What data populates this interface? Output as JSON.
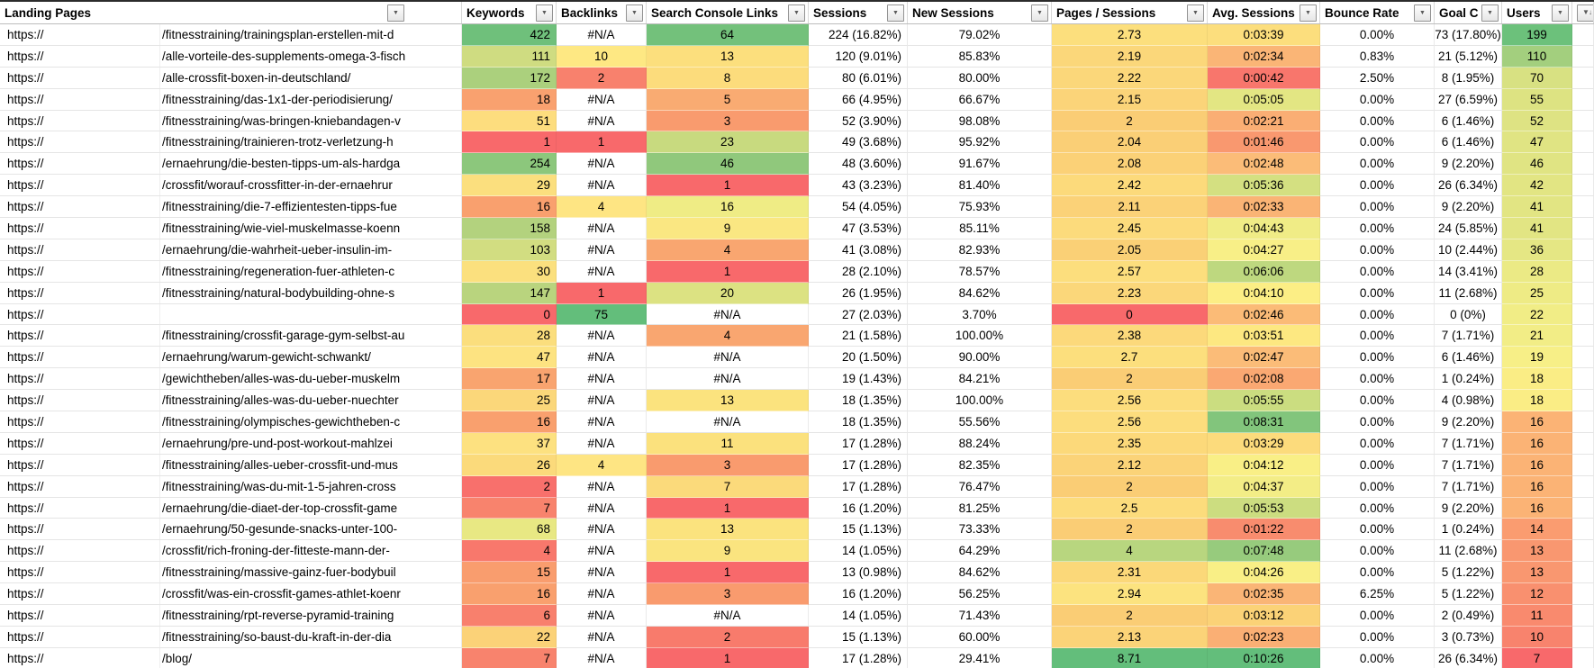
{
  "icons": {
    "filter": "▼",
    "sort_desc": "↓"
  },
  "table": {
    "protocol": "https://"
  },
  "header": {
    "columns": [
      "Landing Pages",
      "Keywords",
      "Backlinks",
      "Search Console Links",
      "Sessions",
      "New Sessions",
      "Pages / Sessions",
      "Avg. Sessions",
      "Bounce Rate",
      "Goal C",
      "Users"
    ]
  },
  "rows": [
    {
      "p": "/fitnesstraining/trainingsplan-erstellen-mit-d",
      "kw": "422",
      "kwc": "#6FC07B",
      "bl": "#N/A",
      "scl": "64",
      "sclc": "#73C17B",
      "s": "224 (16.82%)",
      "ns": "79.02%",
      "ps": "2.73",
      "psc": "#FCDF7D",
      "avg": "0:03:39",
      "avgc": "#FCDE7D",
      "br": "0.00%",
      "goal": "73 (17.80%)",
      "u": "199",
      "uc": "#6CC17B"
    },
    {
      "p": "/alle-vorteile-des-supplements-omega-3-fisch",
      "kw": "111",
      "kwc": "#CFDC81",
      "bl": "10",
      "blc": "#FEE883",
      "scl": "13",
      "sclc": "#FCDF7D",
      "s": "120 (9.01%)",
      "ns": "85.83%",
      "ps": "2.19",
      "psc": "#FBD77A",
      "avg": "0:02:34",
      "avgc": "#FAB576",
      "br": "0.83%",
      "goal": "21 (5.12%)",
      "u": "110",
      "uc": "#A3CF7E"
    },
    {
      "p": "/alle-crossfit-boxen-in-deutschland/",
      "kw": "172",
      "kwc": "#ABD07D",
      "bl": "2",
      "blc": "#F8816D",
      "scl": "8",
      "sclc": "#FCDC7C",
      "s": "80 (6.01%)",
      "ns": "80.00%",
      "ps": "2.22",
      "psc": "#FBD77A",
      "avg": "0:00:42",
      "avgc": "#F8766C",
      "br": "2.50%",
      "goal": "8 (1.95%)",
      "u": "70",
      "uc": "#D8E182"
    },
    {
      "p": "/fitnesstraining/das-1x1-der-periodisierung/",
      "kw": "18",
      "kwc": "#F9A16F",
      "bl": "#N/A",
      "scl": "5",
      "sclc": "#F9AB72",
      "s": "66 (4.95%)",
      "ns": "66.67%",
      "ps": "2.15",
      "psc": "#FBD479",
      "avg": "0:05:05",
      "avgc": "#E3E683",
      "br": "0.00%",
      "goal": "27 (6.59%)",
      "u": "55",
      "uc": "#DDE382"
    },
    {
      "p": "/fitnesstraining/was-bringen-kniebandagen-v",
      "kw": "51",
      "kwc": "#FDDD7E",
      "bl": "#N/A",
      "scl": "3",
      "sclc": "#F99B6E",
      "s": "52 (3.90%)",
      "ns": "98.08%",
      "ps": "2",
      "psc": "#FACD75",
      "avg": "0:02:21",
      "avgc": "#FAAE74",
      "br": "0.00%",
      "goal": "6 (1.46%)",
      "u": "52",
      "uc": "#DEE383"
    },
    {
      "p": "/fitnesstraining/trainieren-trotz-verletzung-h",
      "kw": "1",
      "kwc": "#F8696B",
      "bl": "1",
      "blc": "#F8696B",
      "scl": "23",
      "sclc": "#C8DA7F",
      "s": "49 (3.68%)",
      "ns": "95.92%",
      "ps": "2.04",
      "psc": "#FACF76",
      "avg": "0:01:46",
      "avgc": "#F9986F",
      "br": "0.00%",
      "goal": "6 (1.46%)",
      "u": "47",
      "uc": "#E0E483"
    },
    {
      "p": "/ernaehrung/die-besten-tipps-um-als-hardga",
      "kw": "254",
      "kwc": "#8CC77C",
      "bl": "#N/A",
      "scl": "46",
      "sclc": "#90C87C",
      "s": "48 (3.60%)",
      "ns": "91.67%",
      "ps": "2.08",
      "psc": "#FBD177",
      "avg": "0:02:48",
      "avgc": "#FBBC78",
      "br": "0.00%",
      "goal": "9 (2.20%)",
      "u": "46",
      "uc": "#E0E483"
    },
    {
      "p": "/crossfit/worauf-crossfitter-in-der-ernaehrur",
      "kw": "29",
      "kwc": "#FBDF7E",
      "bl": "#N/A",
      "scl": "1",
      "sclc": "#F8696B",
      "s": "43 (3.23%)",
      "ns": "81.40%",
      "ps": "2.42",
      "psc": "#FCDA7B",
      "avg": "0:05:36",
      "avgc": "#D4E081",
      "br": "0.00%",
      "goal": "26 (6.34%)",
      "u": "42",
      "uc": "#E2E583"
    },
    {
      "p": "/fitnesstraining/die-7-effizientesten-tipps-fue",
      "kw": "16",
      "kwc": "#F9A06E",
      "bl": "4",
      "blc": "#FEE583",
      "scl": "16",
      "sclc": "#EFEC85",
      "s": "54 (4.05%)",
      "ns": "75.93%",
      "ps": "2.11",
      "psc": "#FBD278",
      "avg": "0:02:33",
      "avgc": "#FAB475",
      "br": "0.00%",
      "goal": "9 (2.20%)",
      "u": "41",
      "uc": "#E2E583"
    },
    {
      "p": "/fitnesstraining/wie-viel-muskelmasse-koenn",
      "kw": "158",
      "kwc": "#B3D27E",
      "bl": "#N/A",
      "scl": "9",
      "sclc": "#FAE782",
      "s": "47 (3.53%)",
      "ns": "85.11%",
      "ps": "2.45",
      "psc": "#FCDB7C",
      "avg": "0:04:43",
      "avgc": "#F0EC86",
      "br": "0.00%",
      "goal": "24 (5.85%)",
      "u": "41",
      "uc": "#E2E583"
    },
    {
      "p": "/ernaehrung/die-wahrheit-ueber-insulin-im-",
      "kw": "103",
      "kwc": "#D2DD81",
      "bl": "#N/A",
      "scl": "4",
      "sclc": "#F9A670",
      "s": "41 (3.08%)",
      "ns": "82.93%",
      "ps": "2.05",
      "psc": "#FAD076",
      "avg": "0:04:27",
      "avgc": "#F8EF87",
      "br": "0.00%",
      "goal": "10 (2.44%)",
      "u": "36",
      "uc": "#E5E784"
    },
    {
      "p": "/fitnesstraining/regeneration-fuer-athleten-c",
      "kw": "30",
      "kwc": "#FBE07E",
      "bl": "#N/A",
      "scl": "1",
      "sclc": "#F8696B",
      "s": "28 (2.10%)",
      "ns": "78.57%",
      "ps": "2.57",
      "psc": "#FCDE7D",
      "avg": "0:06:06",
      "avgc": "#BED87F",
      "br": "0.00%",
      "goal": "14 (3.41%)",
      "u": "28",
      "uc": "#EBEA85"
    },
    {
      "p": "/fitnesstraining/natural-bodybuilding-ohne-s",
      "kw": "147",
      "kwc": "#B9D47E",
      "bl": "1",
      "blc": "#F8696B",
      "scl": "20",
      "sclc": "#DCE282",
      "s": "26 (1.95%)",
      "ns": "84.62%",
      "ps": "2.23",
      "psc": "#FBD77A",
      "avg": "0:04:10",
      "avgc": "#FCEE85",
      "br": "0.00%",
      "goal": "11 (2.68%)",
      "u": "25",
      "uc": "#EEEB85"
    },
    {
      "p": "",
      "kw": "0",
      "kwc": "#F8696B",
      "bl": "75",
      "blc": "#63BE7B",
      "scl": "#N/A",
      "s": "27 (2.03%)",
      "ns": "3.70%",
      "ps": "0",
      "psc": "#F8696B",
      "avg": "0:02:46",
      "avgc": "#FBBB77",
      "br": "0.00%",
      "goal": "0 (0%)",
      "u": "22",
      "uc": "#F1ED86"
    },
    {
      "p": "/fitnesstraining/crossfit-garage-gym-selbst-au",
      "kw": "28",
      "kwc": "#FBDE7D",
      "bl": "#N/A",
      "scl": "4",
      "sclc": "#F9A670",
      "s": "21 (1.58%)",
      "ns": "100.00%",
      "ps": "2.38",
      "psc": "#FCD97B",
      "avg": "0:03:51",
      "avgc": "#FDE881",
      "br": "0.00%",
      "goal": "7 (1.71%)",
      "u": "21",
      "uc": "#F2ED86"
    },
    {
      "p": "/ernaehrung/warum-gewicht-schwankt/",
      "kw": "47",
      "kwc": "#FDE381",
      "bl": "#N/A",
      "scl": "#N/A",
      "s": "20 (1.50%)",
      "ns": "90.00%",
      "ps": "2.7",
      "psc": "#FCDF7D",
      "avg": "0:02:47",
      "avgc": "#FBBC78",
      "br": "0.00%",
      "goal": "6 (1.46%)",
      "u": "19",
      "uc": "#F7EF87"
    },
    {
      "p": "/gewichtheben/alles-was-du-ueber-muskelm",
      "kw": "17",
      "kwc": "#F9A46F",
      "bl": "#N/A",
      "scl": "#N/A",
      "s": "19 (1.43%)",
      "ns": "84.21%",
      "ps": "2",
      "psc": "#FACD75",
      "avg": "0:02:08",
      "avgc": "#FAA872",
      "br": "0.00%",
      "goal": "1 (0.24%)",
      "u": "18",
      "uc": "#FAED85"
    },
    {
      "p": "/fitnesstraining/alles-was-du-ueber-nuechter",
      "kw": "25",
      "kwc": "#FBD77A",
      "bl": "#N/A",
      "scl": "13",
      "sclc": "#FBE37E",
      "s": "18 (1.35%)",
      "ns": "100.00%",
      "ps": "2.56",
      "psc": "#FCDD7D",
      "avg": "0:05:55",
      "avgc": "#CBDD80",
      "br": "0.00%",
      "goal": "4 (0.98%)",
      "u": "18",
      "uc": "#FAED85"
    },
    {
      "p": "/fitnesstraining/olympisches-gewichtheben-c",
      "kw": "16",
      "kwc": "#F9A06E",
      "bl": "#N/A",
      "scl": "#N/A",
      "s": "18 (1.35%)",
      "ns": "55.56%",
      "ps": "2.56",
      "psc": "#FCDD7D",
      "avg": "0:08:31",
      "avgc": "#82C57C",
      "br": "0.00%",
      "goal": "9 (2.20%)",
      "u": "16",
      "uc": "#FBB375"
    },
    {
      "p": "/ernaehrung/pre-und-post-workout-mahlzei",
      "kw": "37",
      "kwc": "#FDE180",
      "bl": "#N/A",
      "scl": "11",
      "sclc": "#FBE17D",
      "s": "17 (1.28%)",
      "ns": "88.24%",
      "ps": "2.35",
      "psc": "#FCD97A",
      "avg": "0:03:29",
      "avgc": "#FCDB7C",
      "br": "0.00%",
      "goal": "7 (1.71%)",
      "u": "16",
      "uc": "#FBB375"
    },
    {
      "p": "/fitnesstraining/alles-ueber-crossfit-und-mus",
      "kw": "26",
      "kwc": "#FBDA7B",
      "bl": "4",
      "blc": "#FEE583",
      "scl": "3",
      "sclc": "#F99B6E",
      "s": "17 (1.28%)",
      "ns": "82.35%",
      "ps": "2.12",
      "psc": "#FBD378",
      "avg": "0:04:12",
      "avgc": "#F9EF86",
      "br": "0.00%",
      "goal": "7 (1.71%)",
      "u": "16",
      "uc": "#FBB375"
    },
    {
      "p": "/fitnesstraining/was-du-mit-1-5-jahren-cross",
      "kw": "2",
      "kwc": "#F8706C",
      "bl": "#N/A",
      "scl": "7",
      "sclc": "#FBDA7B",
      "s": "17 (1.28%)",
      "ns": "76.47%",
      "ps": "2",
      "psc": "#FACD75",
      "avg": "0:04:37",
      "avgc": "#F3ED86",
      "br": "0.00%",
      "goal": "7 (1.71%)",
      "u": "16",
      "uc": "#FBB375"
    },
    {
      "p": "/ernaehrung/die-diaet-der-top-crossfit-game",
      "kw": "7",
      "kwc": "#F8836D",
      "bl": "#N/A",
      "scl": "1",
      "sclc": "#F8696B",
      "s": "16 (1.20%)",
      "ns": "81.25%",
      "ps": "2.5",
      "psc": "#FCDC7C",
      "avg": "0:05:53",
      "avgc": "#CCDD80",
      "br": "0.00%",
      "goal": "9 (2.20%)",
      "u": "16",
      "uc": "#FBB375"
    },
    {
      "p": "/ernaehrung/50-gesunde-snacks-unter-100-",
      "kw": "68",
      "kwc": "#E8E883",
      "bl": "#N/A",
      "scl": "13",
      "sclc": "#FBE37E",
      "s": "15 (1.13%)",
      "ns": "73.33%",
      "ps": "2",
      "psc": "#FACD75",
      "avg": "0:01:22",
      "avgc": "#F88C6E",
      "br": "0.00%",
      "goal": "1 (0.24%)",
      "u": "14",
      "uc": "#FA9C70"
    },
    {
      "p": "/crossfit/rich-froning-der-fitteste-mann-der-",
      "kw": "4",
      "kwc": "#F8786C",
      "bl": "#N/A",
      "scl": "9",
      "sclc": "#FAE47F",
      "s": "14 (1.05%)",
      "ns": "64.29%",
      "ps": "4",
      "psc": "#B8D67F",
      "avg": "0:07:48",
      "avgc": "#97CB7D",
      "br": "0.00%",
      "goal": "11 (2.68%)",
      "u": "13",
      "uc": "#F99770"
    },
    {
      "p": "/fitnesstraining/massive-gainz-fuer-bodybuil",
      "kw": "15",
      "kwc": "#F99D6E",
      "bl": "#N/A",
      "scl": "1",
      "sclc": "#F8696B",
      "s": "13 (0.98%)",
      "ns": "84.62%",
      "ps": "2.31",
      "psc": "#FBD879",
      "avg": "0:04:26",
      "avgc": "#F9EF86",
      "br": "0.00%",
      "goal": "5 (1.22%)",
      "u": "13",
      "uc": "#F99770"
    },
    {
      "p": "/crossfit/was-ein-crossfit-games-athlet-koenr",
      "kw": "16",
      "kwc": "#F9A06E",
      "bl": "#N/A",
      "scl": "3",
      "sclc": "#F99B6E",
      "s": "16 (1.20%)",
      "ns": "56.25%",
      "ps": "2.94",
      "psc": "#FCE37F",
      "avg": "0:02:35",
      "avgc": "#FAB576",
      "br": "6.25%",
      "goal": "5 (1.22%)",
      "u": "12",
      "uc": "#F9906F"
    },
    {
      "p": "/fitnesstraining/rpt-reverse-pyramid-training",
      "kw": "6",
      "kwc": "#F8806D",
      "bl": "#N/A",
      "scl": "#N/A",
      "s": "14 (1.05%)",
      "ns": "71.43%",
      "ps": "2",
      "psc": "#FACD75",
      "avg": "0:03:12",
      "avgc": "#FBD277",
      "br": "0.00%",
      "goal": "2 (0.49%)",
      "u": "11",
      "uc": "#F98A6E"
    },
    {
      "p": "/fitnesstraining/so-baust-du-kraft-in-der-dia",
      "kw": "22",
      "kwc": "#FBD278",
      "bl": "#N/A",
      "scl": "2",
      "sclc": "#F87B6C",
      "s": "15 (1.13%)",
      "ns": "60.00%",
      "ps": "2.13",
      "psc": "#FBD378",
      "avg": "0:02:23",
      "avgc": "#FAAF74",
      "br": "0.00%",
      "goal": "3 (0.73%)",
      "u": "10",
      "uc": "#F8836D"
    },
    {
      "p": "/blog/",
      "kw": "7",
      "kwc": "#F8836D",
      "bl": "#N/A",
      "scl": "1",
      "sclc": "#F8696B",
      "s": "17 (1.28%)",
      "ns": "29.41%",
      "ps": "8.71",
      "psc": "#63BE7B",
      "avg": "0:10:26",
      "avgc": "#63BE7B",
      "br": "0.00%",
      "goal": "26 (6.34%)",
      "u": "7",
      "uc": "#F8696B"
    }
  ]
}
